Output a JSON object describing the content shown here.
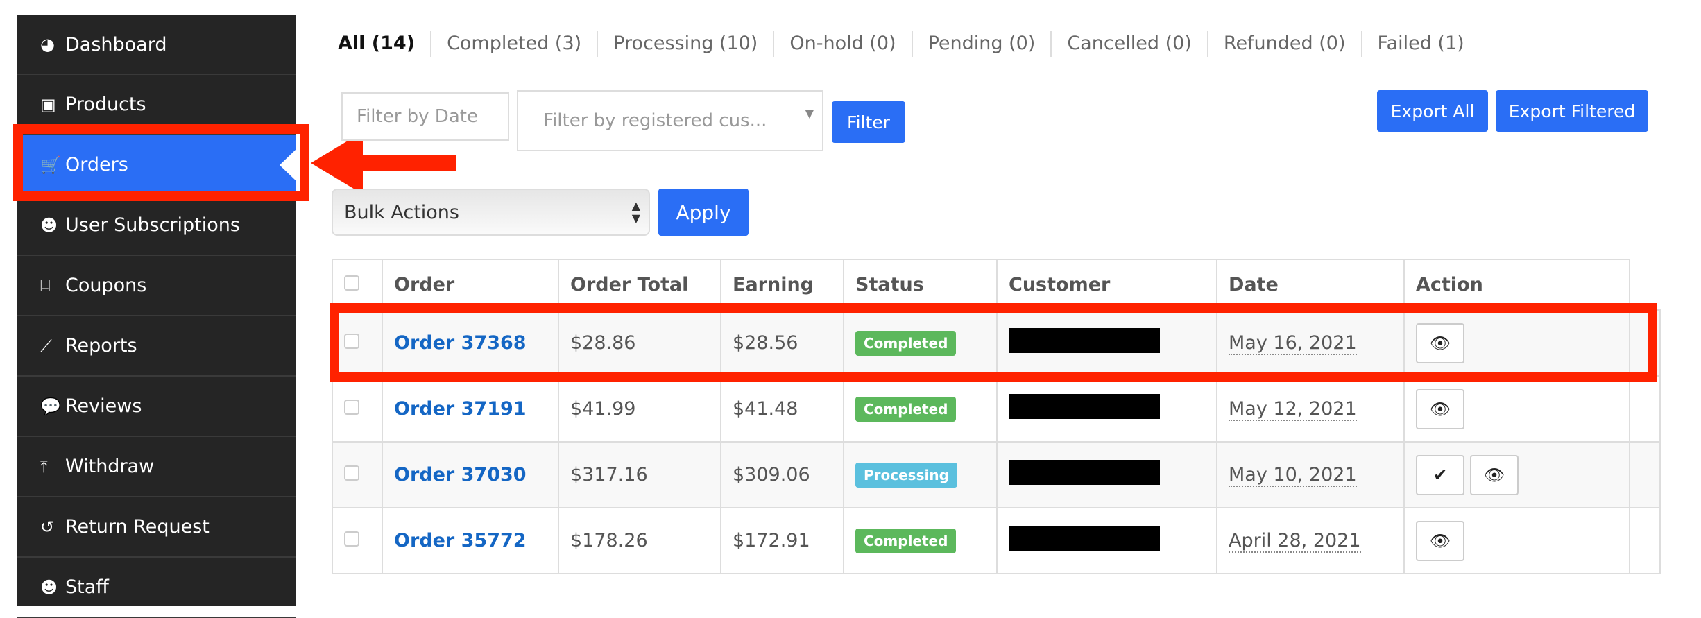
{
  "sidebar": {
    "items": [
      {
        "label": "Dashboard",
        "icon": "dashboard-icon",
        "glyph": "◕"
      },
      {
        "label": "Products",
        "icon": "briefcase-icon",
        "glyph": "▣"
      },
      {
        "label": "Orders",
        "icon": "cart-icon",
        "glyph": "🛒",
        "active": true
      },
      {
        "label": "User Subscriptions",
        "icon": "users-icon",
        "glyph": "☻"
      },
      {
        "label": "Coupons",
        "icon": "gift-icon",
        "glyph": "⌸"
      },
      {
        "label": "Reports",
        "icon": "chart-icon",
        "glyph": "⟋"
      },
      {
        "label": "Reviews",
        "icon": "comments-icon",
        "glyph": "💬"
      },
      {
        "label": "Withdraw",
        "icon": "upload-icon",
        "glyph": "⤒"
      },
      {
        "label": "Return Request",
        "icon": "undo-icon",
        "glyph": "↺"
      },
      {
        "label": "Staff",
        "icon": "users-icon",
        "glyph": "☻"
      }
    ]
  },
  "tabs": [
    "All (14)",
    "Completed (3)",
    "Processing (10)",
    "On-hold (0)",
    "Pending (0)",
    "Cancelled (0)",
    "Refunded (0)",
    "Failed (1)"
  ],
  "filters": {
    "date_placeholder": "Filter by Date",
    "customer_placeholder": "Filter by registered cus...",
    "filter_label": "Filter",
    "export_all": "Export All",
    "export_filtered": "Export Filtered"
  },
  "bulk": {
    "selected": "Bulk Actions",
    "apply": "Apply"
  },
  "table": {
    "headers": [
      "Order",
      "Order Total",
      "Earning",
      "Status",
      "Customer",
      "Date",
      "Action"
    ],
    "rows": [
      {
        "order": "Order 37368",
        "total": "$28.86",
        "earning": "$28.56",
        "status": "Completed",
        "date": "May 16, 2021",
        "actions": [
          "view"
        ]
      },
      {
        "order": "Order 37191",
        "total": "$41.99",
        "earning": "$41.48",
        "status": "Completed",
        "date": "May 12, 2021",
        "actions": [
          "view"
        ]
      },
      {
        "order": "Order 37030",
        "total": "$317.16",
        "earning": "$309.06",
        "status": "Processing",
        "date": "May 10, 2021",
        "actions": [
          "complete",
          "view"
        ]
      },
      {
        "order": "Order 35772",
        "total": "$178.26",
        "earning": "$172.91",
        "status": "Completed",
        "date": "April 28, 2021",
        "actions": [
          "view"
        ]
      }
    ]
  },
  "colors": {
    "accent": "#2a6ef5",
    "completed": "#5cb85c",
    "processing": "#5bc0de",
    "annotation": "#ff2200",
    "sidebar": "#252525"
  }
}
